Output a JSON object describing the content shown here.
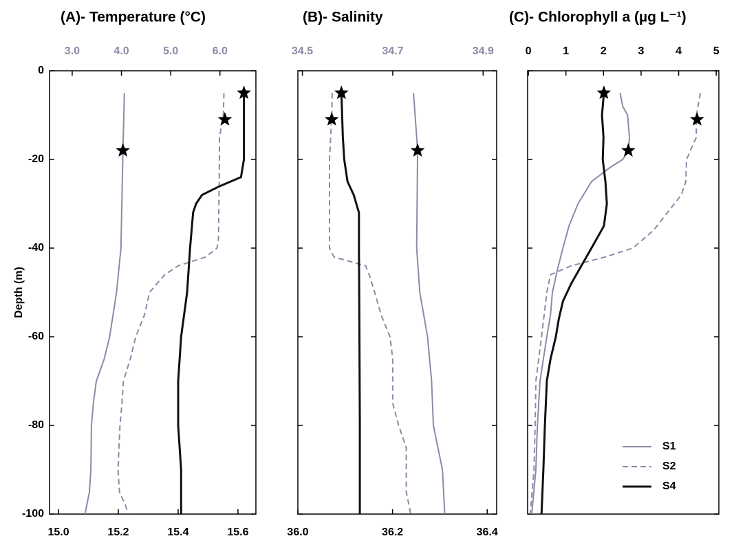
{
  "chart_data": [
    {
      "type": "line",
      "title": "(A)- Temperature (°C)",
      "ylabel": "Depth (m)",
      "ylim": [
        -100,
        0
      ],
      "yticks": [
        0,
        -20,
        -40,
        -60,
        -80,
        -100
      ],
      "ytick_labels": true,
      "xlim": [
        2.54,
        6.73
      ],
      "xticks": [
        {
          "value": 3,
          "label": "3.0"
        },
        {
          "value": 4,
          "label": "4.0"
        },
        {
          "value": 5,
          "label": "5.0"
        },
        {
          "value": 6,
          "label": "6.0"
        }
      ],
      "xaxis_color": "#8c8aa8",
      "x2lim": [
        14.97,
        15.66
      ],
      "x2ticks": [
        {
          "value": 15,
          "label": "15.0"
        },
        {
          "value": 15.2,
          "label": "15.2"
        },
        {
          "value": 15.4,
          "label": "15.4"
        },
        {
          "value": 15.6,
          "label": "15.6"
        }
      ],
      "series": [
        {
          "color": "#8c8aa8",
          "dash": false,
          "line_width": 2,
          "depth": [
            -5,
            -18,
            -40,
            -50,
            -60,
            -65,
            -70,
            -75,
            -80,
            -90,
            -95,
            -100
          ],
          "values": [
            4.06,
            4.03,
            3.99,
            3.9,
            3.76,
            3.65,
            3.49,
            3.43,
            3.39,
            3.38,
            3.35,
            3.26
          ],
          "star": {
            "value": 4.03,
            "depth": -18
          }
        },
        {
          "color": "#8c8aa8",
          "dash": true,
          "line_width": 2,
          "depth": [
            -5,
            -10,
            -15,
            -20,
            -38,
            -40,
            -42,
            -44,
            -46,
            -50,
            -55,
            -60,
            -65,
            -70,
            -75,
            -80,
            -90,
            -95,
            -98,
            -100
          ],
          "values": [
            6.08,
            6.07,
            5.99,
            5.99,
            5.97,
            5.94,
            5.71,
            5.15,
            4.88,
            4.57,
            4.47,
            4.29,
            4.18,
            4.04,
            4.01,
            3.97,
            3.93,
            3.96,
            4.08,
            4.14
          ],
          "star": {
            "value": 6.1,
            "depth": -11
          }
        },
        {
          "color": "#111111",
          "dash": false,
          "line_width": 3,
          "axis": "x2",
          "depth": [
            -5,
            -20,
            -24,
            -26,
            -28,
            -30,
            -32,
            -40,
            -50,
            -60,
            -70,
            -80,
            -90,
            -100
          ],
          "values": [
            15.62,
            15.62,
            15.61,
            15.54,
            15.48,
            15.46,
            15.45,
            15.44,
            15.43,
            15.41,
            15.4,
            15.4,
            15.41,
            15.41
          ],
          "star": {
            "value": 15.62,
            "depth": -5
          }
        }
      ]
    },
    {
      "type": "line",
      "title": "(B)- Salinity",
      "ylim": [
        -100,
        0
      ],
      "yticks": [
        0,
        -20,
        -40,
        -60,
        -80,
        -100
      ],
      "ytick_labels": false,
      "xlim": [
        34.49,
        34.93
      ],
      "xticks": [
        34.5,
        34.7,
        34.9
      ],
      "xaxis_color": "#8c8aa8",
      "x2lim": [
        36.0,
        36.42
      ],
      "x2ticks": [
        {
          "value": 36,
          "label": "36.0"
        },
        36.2,
        36.4
      ],
      "series": [
        {
          "color": "#8c8aa8",
          "dash": false,
          "line_width": 2,
          "depth": [
            -5,
            -18,
            -40,
            -50,
            -60,
            -70,
            -80,
            -90,
            -100
          ],
          "values": [
            34.746,
            34.755,
            34.753,
            34.76,
            34.777,
            34.786,
            34.79,
            34.81,
            34.815
          ],
          "star": {
            "value": 34.755,
            "depth": -18
          }
        },
        {
          "color": "#8c8aa8",
          "dash": true,
          "line_width": 2,
          "depth": [
            -5,
            -10,
            -20,
            -40,
            -42,
            -44,
            -46,
            -50,
            -55,
            -60,
            -65,
            -70,
            -75,
            -80,
            -85,
            -90,
            -95,
            -100
          ],
          "values": [
            34.566,
            34.565,
            34.56,
            34.56,
            34.57,
            34.64,
            34.648,
            34.66,
            34.674,
            34.694,
            34.7,
            34.7,
            34.7,
            34.713,
            34.73,
            34.73,
            34.73,
            34.74
          ],
          "star": {
            "value": 34.565,
            "depth": -11
          }
        },
        {
          "color": "#111111",
          "dash": false,
          "line_width": 3,
          "axis": "x2",
          "depth": [
            -5,
            -15,
            -20,
            -25,
            -28,
            -32,
            -40,
            -60,
            -80,
            -100
          ],
          "values": [
            36.092,
            36.095,
            36.098,
            36.105,
            36.118,
            36.129,
            36.129,
            36.13,
            36.131,
            36.131
          ],
          "star": {
            "value": 36.092,
            "depth": -5
          }
        }
      ]
    },
    {
      "type": "line",
      "title": "(C)- Chlorophyll a (µg L⁻¹)",
      "ylim": [
        -100,
        0
      ],
      "yticks": [
        0,
        -20,
        -40,
        -60,
        -80,
        -100
      ],
      "ytick_labels": false,
      "xlim": [
        -0.02,
        5.07
      ],
      "xticks": [
        0,
        1,
        2,
        3,
        4,
        5
      ],
      "xaxis_color": "#000000",
      "legend": "lower right",
      "series": [
        {
          "name": "S1",
          "color": "#8c8aa8",
          "dash": false,
          "line_width": 2,
          "depth": [
            -5,
            -8,
            -10,
            -15,
            -18,
            -20,
            -22,
            -25,
            -30,
            -35,
            -40,
            -45,
            -50,
            -55,
            -60,
            -65,
            -70,
            -80,
            -90,
            -100
          ],
          "values": [
            2.44,
            2.51,
            2.64,
            2.69,
            2.66,
            2.51,
            2.14,
            1.68,
            1.32,
            1.08,
            0.92,
            0.77,
            0.64,
            0.59,
            0.49,
            0.4,
            0.31,
            0.24,
            0.2,
            0.09
          ],
          "star": {
            "value": 2.66,
            "depth": -18
          }
        },
        {
          "name": "S2",
          "color": "#8c8aa8",
          "dash": true,
          "line_width": 2,
          "depth": [
            -5,
            -10,
            -15,
            -20,
            -25,
            -28,
            -32,
            -36,
            -40,
            -42,
            -44,
            -46,
            -50,
            -60,
            -70,
            -80,
            -90,
            -100
          ],
          "values": [
            4.58,
            4.47,
            4.47,
            4.21,
            4.19,
            4.07,
            3.7,
            3.33,
            2.78,
            2.05,
            1.14,
            0.59,
            0.49,
            0.35,
            0.2,
            0.18,
            0.15,
            0.05
          ],
          "star": {
            "value": 4.49,
            "depth": -11
          }
        },
        {
          "name": "S4",
          "color": "#111111",
          "dash": false,
          "line_width": 3,
          "depth": [
            -5,
            -10,
            -15,
            -20,
            -25,
            -30,
            -35,
            -40,
            -44,
            -48,
            -52,
            -56,
            -60,
            -65,
            -70,
            -80,
            -90,
            -100
          ],
          "values": [
            2.01,
            1.96,
            2.0,
            1.98,
            2.05,
            2.09,
            2.01,
            1.68,
            1.41,
            1.14,
            0.92,
            0.81,
            0.73,
            0.59,
            0.49,
            0.44,
            0.4,
            0.35
          ],
          "star": {
            "value": 2.01,
            "depth": -5
          }
        }
      ]
    }
  ]
}
